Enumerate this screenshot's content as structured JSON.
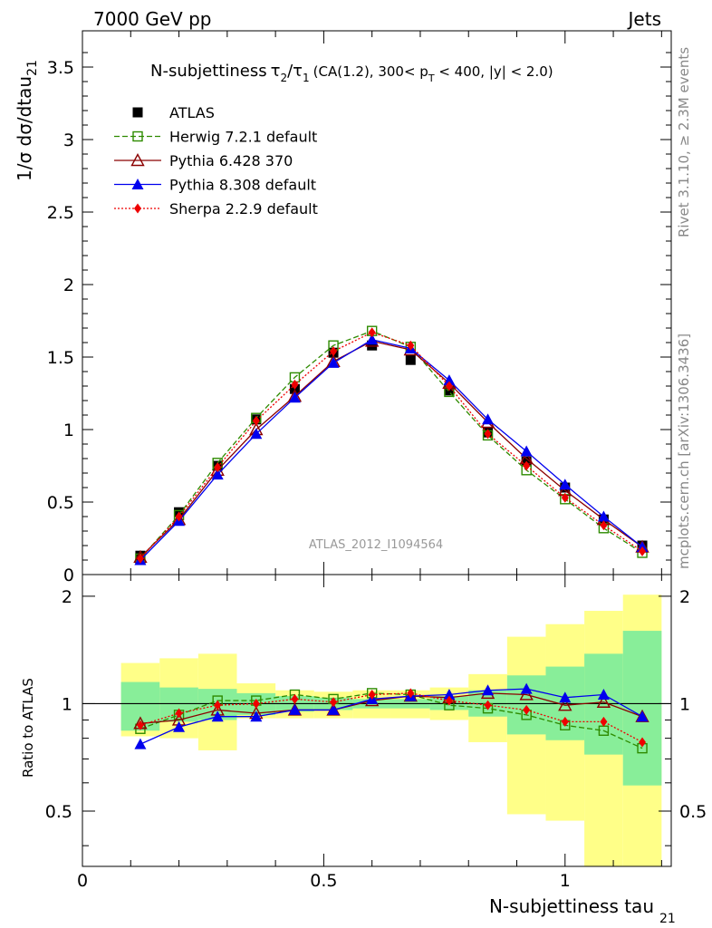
{
  "header": {
    "left": "7000 GeV pp",
    "right": "Jets"
  },
  "side": {
    "rivet": "Rivet 3.1.10, ≥ 2.3M events",
    "mcplots": "mcplots.cern.ch [arXiv:1306.3436]"
  },
  "colors": {
    "atlas": "#000000",
    "herwig": "#2e8b00",
    "pythia6": "#8b0000",
    "pythia8": "#0000ee",
    "sherpa": "#ee0000",
    "band_inner": "#88ee99",
    "band_outer": "#ffff88"
  },
  "chart_data": [
    {
      "type": "line",
      "title": "N-subjettiness τ2/τ1 (CA(1.2), 300< pT < 400, |y| < 2.0)",
      "title_parts": {
        "main": "N-subjettiness",
        "tau": "τ",
        "sub2": "2",
        "slash": "/",
        "sub1": "1",
        "cond_a": "(CA(1.2), 300< p",
        "sub_t": "T",
        "cond_b": " < 400, |y| < 2.0)"
      },
      "ylabel": "1/σ dσ/dtau",
      "ylabel_sub": "21",
      "watermark": "ATLAS_2012_I1094564",
      "xlim": [
        0,
        1.22
      ],
      "ylim": [
        0,
        3.75
      ],
      "yticks": [
        "0",
        "0.5",
        "1",
        "1.5",
        "2",
        "2.5",
        "3",
        "3.5"
      ],
      "legend_position": "top-left",
      "x": [
        0.12,
        0.2,
        0.28,
        0.36,
        0.44,
        0.52,
        0.6,
        0.68,
        0.76,
        0.84,
        0.92,
        1.0,
        1.08,
        1.16
      ],
      "series": [
        {
          "name": "ATLAS",
          "key": "atlas",
          "marker": "filled-square",
          "line": "none",
          "values": [
            0.13,
            0.43,
            0.75,
            1.07,
            1.28,
            1.53,
            1.58,
            1.48,
            1.27,
            0.98,
            0.78,
            0.6,
            0.38,
            0.2
          ]
        },
        {
          "name": "Herwig 7.2.1 default",
          "key": "herwig",
          "marker": "open-square",
          "line": "dashed",
          "values": [
            0.11,
            0.41,
            0.77,
            1.08,
            1.36,
            1.58,
            1.68,
            1.57,
            1.26,
            0.96,
            0.72,
            0.52,
            0.32,
            0.15
          ]
        },
        {
          "name": "Pythia 6.428 370",
          "key": "pythia6",
          "marker": "open-triangle",
          "line": "solid",
          "values": [
            0.12,
            0.38,
            0.72,
            1.0,
            1.23,
            1.47,
            1.61,
            1.55,
            1.32,
            1.05,
            0.8,
            0.58,
            0.38,
            0.19
          ]
        },
        {
          "name": "Pythia 8.308 default",
          "key": "pythia8",
          "marker": "filled-triangle",
          "line": "solid",
          "values": [
            0.1,
            0.37,
            0.69,
            0.97,
            1.22,
            1.46,
            1.62,
            1.56,
            1.34,
            1.07,
            0.85,
            0.62,
            0.4,
            0.19
          ]
        },
        {
          "name": "Sherpa 2.2.9 default",
          "key": "sherpa",
          "marker": "filled-diamond",
          "line": "dotted",
          "values": [
            0.11,
            0.4,
            0.74,
            1.06,
            1.31,
            1.54,
            1.67,
            1.58,
            1.3,
            0.97,
            0.75,
            0.53,
            0.34,
            0.16
          ]
        }
      ]
    },
    {
      "type": "line",
      "ylabel": "Ratio to ATLAS",
      "xlabel": "N-subjettiness tau",
      "xlabel_sub": "21",
      "xlim": [
        0,
        1.22
      ],
      "ylim": [
        0.35,
        2.3
      ],
      "xticks": [
        "0",
        "0.5",
        "1"
      ],
      "yticks": [
        "0.5",
        "1",
        "2"
      ],
      "reference_line": 1,
      "x": [
        0.12,
        0.2,
        0.28,
        0.36,
        0.44,
        0.52,
        0.6,
        0.68,
        0.76,
        0.84,
        0.92,
        1.0,
        1.08,
        1.16
      ],
      "bin_edges": [
        0.08,
        0.16,
        0.24,
        0.32,
        0.4,
        0.48,
        0.56,
        0.64,
        0.72,
        0.8,
        0.88,
        0.96,
        1.04,
        1.12,
        1.2
      ],
      "bands": {
        "inner_low": [
          0.84,
          0.89,
          0.9,
          0.93,
          0.95,
          0.96,
          0.97,
          0.97,
          0.96,
          0.92,
          0.82,
          0.79,
          0.72,
          0.59
        ],
        "inner_high": [
          1.15,
          1.11,
          1.1,
          1.07,
          1.05,
          1.04,
          1.03,
          1.03,
          1.05,
          1.09,
          1.2,
          1.27,
          1.38,
          1.6
        ],
        "outer_low": [
          0.81,
          0.8,
          0.74,
          0.91,
          0.91,
          0.91,
          0.91,
          0.91,
          0.9,
          0.78,
          0.49,
          0.47,
          0.35,
          0.35
        ],
        "outer_high": [
          1.3,
          1.34,
          1.38,
          1.14,
          1.09,
          1.08,
          1.09,
          1.09,
          1.11,
          1.21,
          1.54,
          1.67,
          1.82,
          2.02
        ]
      },
      "series": [
        {
          "name": "Herwig 7.2.1 default",
          "key": "herwig",
          "marker": "open-square",
          "line": "dashed",
          "values": [
            0.85,
            0.93,
            1.02,
            1.02,
            1.06,
            1.03,
            1.07,
            1.06,
            0.99,
            0.97,
            0.93,
            0.87,
            0.84,
            0.75
          ]
        },
        {
          "name": "Pythia 6.428 370",
          "key": "pythia6",
          "marker": "open-triangle",
          "line": "solid",
          "values": [
            0.88,
            0.9,
            0.96,
            0.94,
            0.96,
            0.96,
            1.02,
            1.05,
            1.04,
            1.07,
            1.06,
            0.99,
            1.01,
            0.92
          ]
        },
        {
          "name": "Pythia 8.308 default",
          "key": "pythia8",
          "marker": "filled-triangle",
          "line": "solid",
          "values": [
            0.77,
            0.86,
            0.92,
            0.92,
            0.96,
            0.96,
            1.03,
            1.05,
            1.06,
            1.09,
            1.1,
            1.04,
            1.06,
            0.92
          ]
        },
        {
          "name": "Sherpa 2.2.9 default",
          "key": "sherpa",
          "marker": "filled-diamond",
          "line": "dotted",
          "values": [
            0.87,
            0.94,
            0.99,
            1.0,
            1.03,
            1.01,
            1.06,
            1.07,
            1.02,
            0.99,
            0.96,
            0.89,
            0.89,
            0.78
          ]
        }
      ]
    }
  ]
}
